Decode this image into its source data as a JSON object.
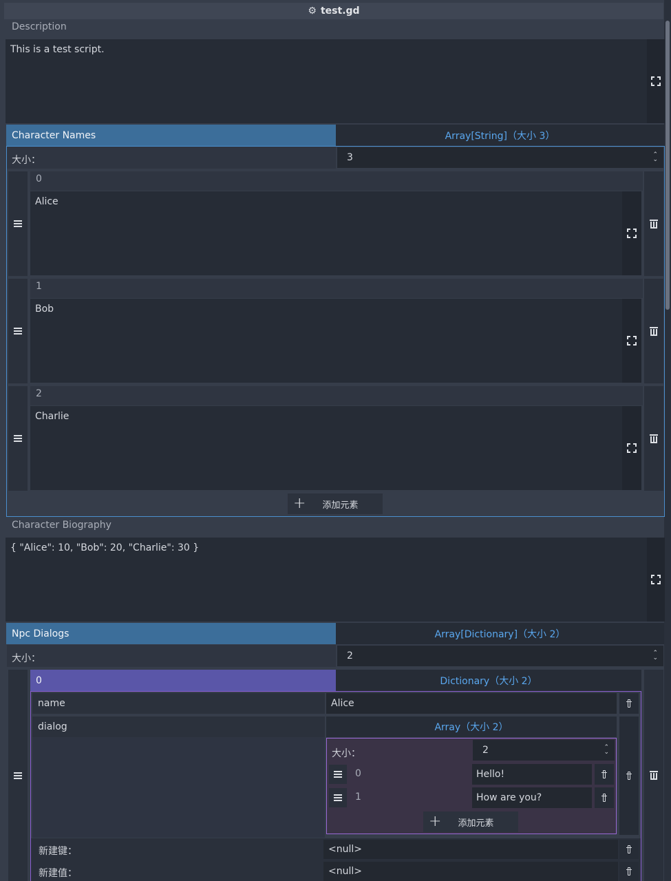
{
  "title": "test.gd",
  "description": {
    "label": "Description",
    "value": "This is a test script."
  },
  "character_names": {
    "label": "Character Names",
    "type_button": "Array[String]（大小 3）",
    "size_label": "大小：",
    "size_value": "3",
    "items": [
      {
        "index": "0",
        "value": "Alice"
      },
      {
        "index": "1",
        "value": "Bob"
      },
      {
        "index": "2",
        "value": "Charlie"
      }
    ],
    "add_label": "添加元素"
  },
  "character_biography": {
    "label": "Character Biography",
    "value": "{ \"Alice\": 10, \"Bob\": 20, \"Charlie\": 30 }"
  },
  "npc_dialogs": {
    "label": "Npc Dialogs",
    "type_button": "Array[Dictionary]（大小 2）",
    "size_label": "大小：",
    "size_value": "2",
    "element": {
      "index": "0",
      "type_button": "Dictionary（大小 2）",
      "name_key": "name",
      "name_value": "Alice",
      "dialog_key": "dialog",
      "dialog_type_button": "Array（大小 2）",
      "inner_size_label": "大小：",
      "inner_size_value": "2",
      "inner_items": [
        {
          "index": "0",
          "value": "Hello!"
        },
        {
          "index": "1",
          "value": "How are you?"
        }
      ],
      "inner_add_label": "添加元素",
      "new_key_label": "新建键：",
      "new_key_value": "<null>",
      "new_value_label": "新建值：",
      "new_value_value": "<null>"
    }
  }
}
